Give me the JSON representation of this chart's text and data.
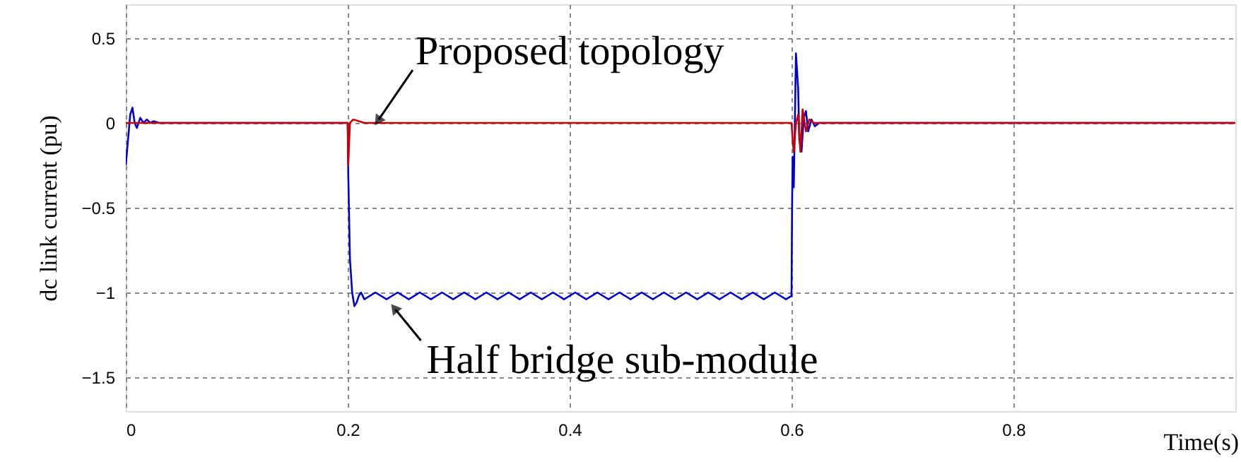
{
  "chart_data": {
    "type": "line",
    "xlabel": "Time(s)",
    "ylabel": "dc link current (pu)",
    "xlim": [
      0,
      1.0
    ],
    "ylim": [
      -1.7,
      0.7
    ],
    "xticks": [
      0,
      0.2,
      0.4,
      0.6,
      0.8
    ],
    "yticks": [
      0.5,
      0,
      -0.5,
      -1,
      -1.5
    ],
    "grid": true,
    "marker": "none",
    "line_style": "solid",
    "series": [
      {
        "color": "#0000cc",
        "x": [
          0,
          0.002,
          0.004,
          0.006,
          0.008,
          0.01,
          0.013,
          0.016,
          0.019,
          0.022,
          0.025,
          0.03,
          0.2,
          0.2005,
          0.202,
          0.204,
          0.206,
          0.208,
          0.21,
          0.212,
          0.215,
          0.225,
          0.235,
          0.245,
          0.255,
          0.265,
          0.275,
          0.285,
          0.295,
          0.305,
          0.315,
          0.325,
          0.335,
          0.345,
          0.355,
          0.365,
          0.375,
          0.385,
          0.395,
          0.405,
          0.415,
          0.425,
          0.435,
          0.445,
          0.455,
          0.465,
          0.475,
          0.485,
          0.495,
          0.505,
          0.515,
          0.525,
          0.535,
          0.545,
          0.555,
          0.565,
          0.575,
          0.585,
          0.595,
          0.6,
          0.6005,
          0.601,
          0.602,
          0.603,
          0.604,
          0.606,
          0.607,
          0.609,
          0.611,
          0.613,
          0.615,
          0.618,
          0.621,
          0.625,
          0.63,
          1.0
        ],
        "values": [
          -0.25,
          -0.1,
          0.05,
          0.09,
          0.0,
          -0.03,
          0.03,
          0.0,
          0.02,
          0.0,
          0.01,
          0,
          0,
          -0.3,
          -0.8,
          -1.0,
          -1.08,
          -1.06,
          -1.02,
          -1.0,
          -1.04,
          -1.0,
          -1.04,
          -1.0,
          -1.04,
          -1.0,
          -1.04,
          -1.0,
          -1.04,
          -1.0,
          -1.04,
          -1.0,
          -1.04,
          -1.0,
          -1.04,
          -1.0,
          -1.04,
          -1.0,
          -1.04,
          -1.0,
          -1.04,
          -1.0,
          -1.04,
          -1.0,
          -1.04,
          -1.0,
          -1.04,
          -1.0,
          -1.04,
          -1.0,
          -1.04,
          -1.0,
          -1.04,
          -1.0,
          -1.04,
          -1.0,
          -1.04,
          -1.0,
          -1.04,
          -1.02,
          -0.5,
          -0.2,
          -0.38,
          0.0,
          0.41,
          0.2,
          -0.1,
          -0.17,
          0.03,
          0.07,
          -0.05,
          0.02,
          -0.02,
          0.0,
          0.0,
          0
        ]
      },
      {
        "color": "#cc0000",
        "x": [
          0,
          0.2,
          0.2005,
          0.202,
          0.205,
          0.21,
          0.215,
          0.6,
          0.601,
          0.602,
          0.604,
          0.606,
          0.608,
          0.61,
          0.613,
          0.616,
          0.62,
          1.0
        ],
        "values": [
          0,
          0,
          -0.25,
          0.0,
          0.02,
          0.01,
          0.0,
          0,
          -0.1,
          -0.17,
          0.0,
          0.05,
          -0.17,
          0.08,
          -0.05,
          0.02,
          0,
          0
        ]
      }
    ],
    "annotations": [
      {
        "text": "Proposed topology",
        "x": 0.228,
        "y": 0.02
      },
      {
        "text": "Half bridge sub-module",
        "x": 0.243,
        "y": -1.1
      }
    ]
  }
}
